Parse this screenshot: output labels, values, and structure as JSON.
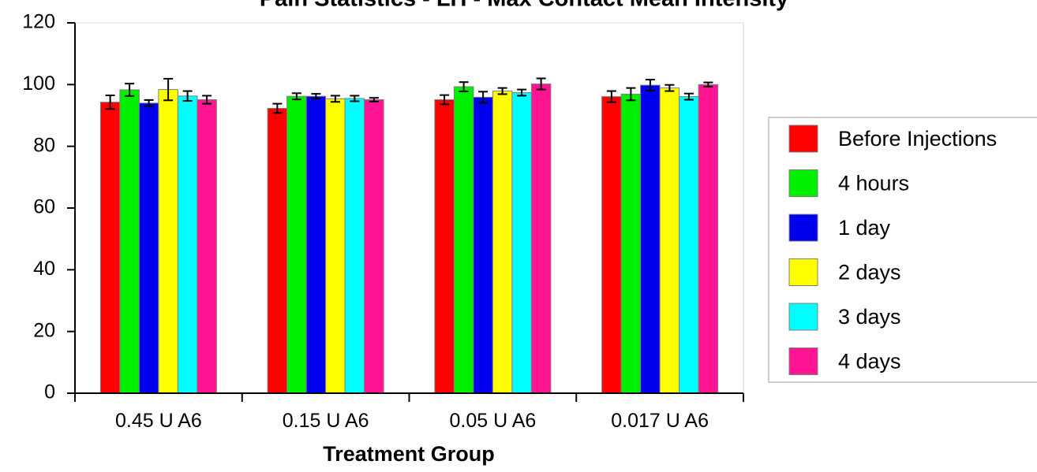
{
  "chart_data": {
    "type": "bar",
    "title": "Pain Statistics - LH - Max Contact Mean Intensity",
    "xlabel": "Treatment Group",
    "ylabel": "",
    "ylim": [
      0,
      120
    ],
    "yticks": [
      0,
      20,
      40,
      60,
      80,
      100,
      120
    ],
    "grid": false,
    "legend_position": "right",
    "categories": [
      "0.45 U A6",
      "0.15 U A6",
      "0.05 U A6",
      "0.017 U A6"
    ],
    "series": [
      {
        "name": "Before Injections",
        "color": "#ff0000",
        "values": [
          94.3,
          92.3,
          95.1,
          96.1
        ],
        "errors": [
          2.2,
          1.5,
          1.5,
          1.8
        ]
      },
      {
        "name": "4 hours",
        "color": "#00ee00",
        "values": [
          98.3,
          96.2,
          99.3,
          96.9
        ],
        "errors": [
          2.0,
          1.0,
          1.5,
          2.0
        ]
      },
      {
        "name": "1 day",
        "color": "#0000ee",
        "values": [
          94.0,
          96.2,
          95.9,
          99.8
        ],
        "errors": [
          1.0,
          0.8,
          1.8,
          1.8
        ]
      },
      {
        "name": "2 days",
        "color": "#ffff00",
        "values": [
          98.4,
          95.4,
          97.9,
          98.9
        ],
        "errors": [
          3.5,
          1.0,
          1.0,
          1.0
        ]
      },
      {
        "name": "3 days",
        "color": "#00ffff",
        "values": [
          96.3,
          95.5,
          97.4,
          96.1
        ],
        "errors": [
          1.6,
          0.9,
          1.0,
          1.0
        ]
      },
      {
        "name": "4 days",
        "color": "#ff1493",
        "values": [
          95.1,
          95.1,
          100.2,
          100.0
        ],
        "errors": [
          1.3,
          0.6,
          1.8,
          0.7
        ]
      }
    ]
  }
}
